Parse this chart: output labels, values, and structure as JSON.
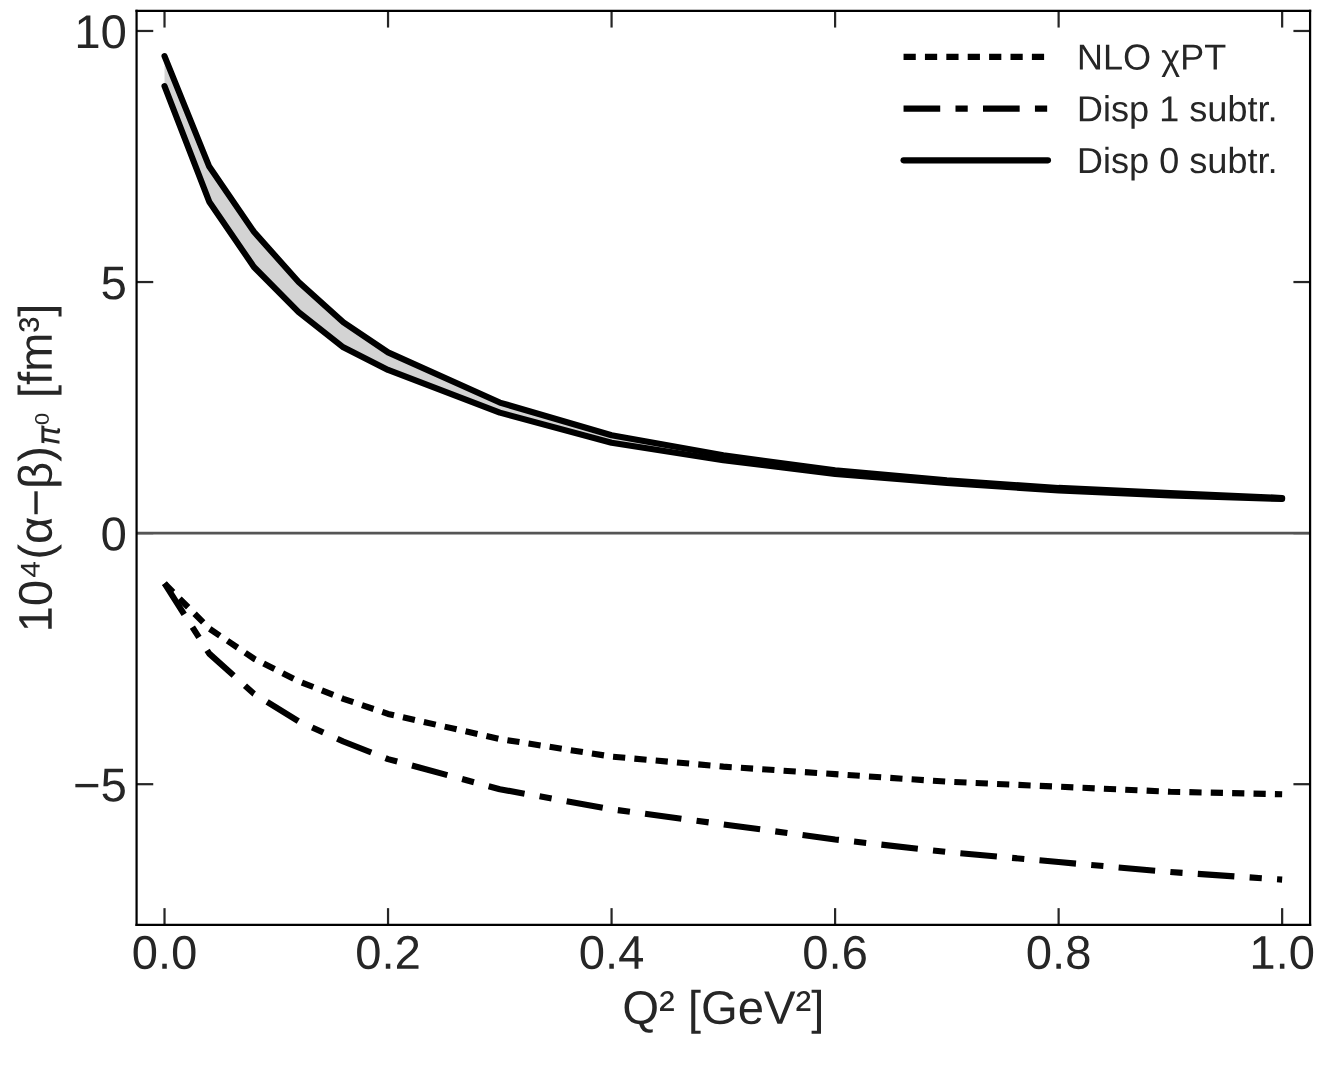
{
  "chart_data": {
    "type": "line",
    "xlabel": "Q² [GeV²]",
    "ylabel": "10⁴(α−β)$_{π⁰}$ [fm³]",
    "x": [
      0,
      0.04,
      0.08,
      0.12,
      0.16,
      0.2,
      0.3,
      0.4,
      0.5,
      0.6,
      0.7,
      0.8,
      0.9,
      1.0
    ],
    "series": [
      {
        "name": "NLO χPT",
        "color": "#000000",
        "line_style": "dotted",
        "values": [
          -1.0,
          -1.9,
          -2.5,
          -2.95,
          -3.3,
          -3.6,
          -4.1,
          -4.45,
          -4.65,
          -4.8,
          -4.95,
          -5.05,
          -5.15,
          -5.2
        ]
      },
      {
        "name": "Disp 1 subtr.",
        "color": "#000000",
        "line_style": "dashdot",
        "values": [
          -1.0,
          -2.4,
          -3.2,
          -3.75,
          -4.15,
          -4.5,
          -5.1,
          -5.5,
          -5.8,
          -6.1,
          -6.35,
          -6.55,
          -6.75,
          -6.9
        ]
      },
      {
        "name": "Disp 0 subtr.",
        "color": "#000000",
        "line_style": "solid",
        "values": [
          9.5,
          7.3,
          6.0,
          5.0,
          4.2,
          3.6,
          2.6,
          1.95,
          1.55,
          1.25,
          1.05,
          0.9,
          0.8,
          0.7
        ]
      },
      {
        "color": "#000000",
        "line_style": "solid",
        "values": [
          8.9,
          6.6,
          5.3,
          4.4,
          3.7,
          3.25,
          2.4,
          1.8,
          1.45,
          1.18,
          1.0,
          0.85,
          0.75,
          0.68
        ]
      }
    ],
    "xlim": [
      -0.025,
      1.025
    ],
    "ylim": [
      -7.8,
      10.4
    ],
    "xticks": [
      {
        "value": 0,
        "label": "0.0"
      },
      {
        "value": 0.2,
        "label": "0.2"
      },
      {
        "value": 0.4,
        "label": "0.4"
      },
      {
        "value": 0.6,
        "label": "0.6"
      },
      {
        "value": 0.8,
        "label": "0.8"
      },
      {
        "value": 1.0,
        "label": "1.0"
      }
    ],
    "yticks": [
      {
        "value": -5,
        "label": "−5"
      },
      0,
      5,
      10
    ],
    "ref_lines": [
      {
        "axis": "y",
        "value": 0,
        "color": "#555555"
      }
    ],
    "grid": false,
    "legend": "top right",
    "marker": "none"
  }
}
